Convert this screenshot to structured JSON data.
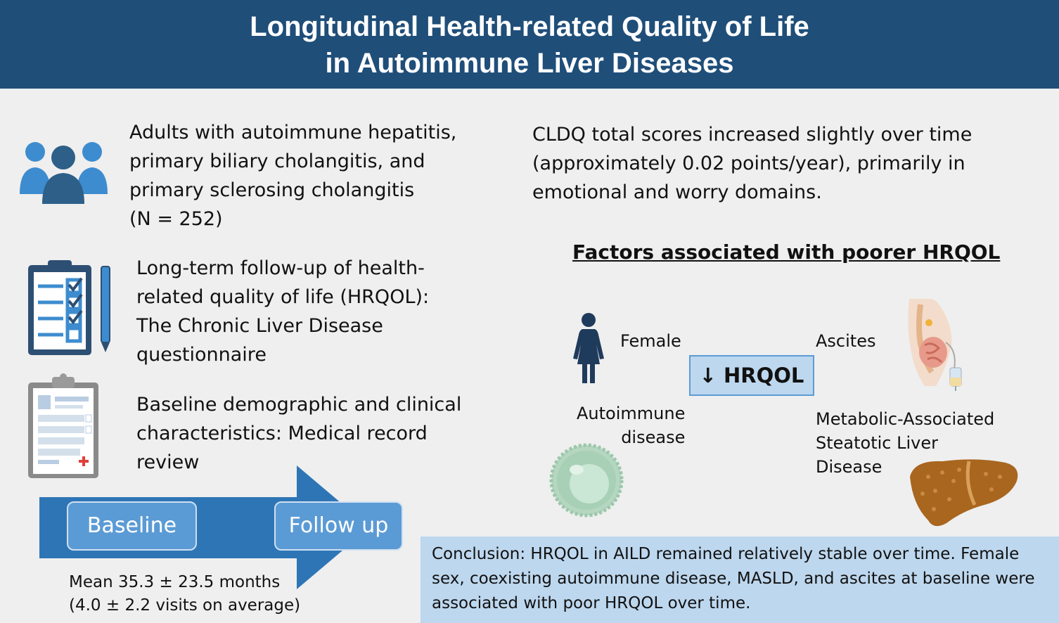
{
  "header": {
    "title_line1": "Longitudinal Health-related Quality of Life",
    "title_line2": "in Autoimmune Liver Diseases"
  },
  "left": {
    "population": [
      "Adults with autoimmune hepatitis,",
      "primary biliary cholangitis, and",
      "primary sclerosing cholangitis",
      "(N = 252)"
    ],
    "followup": [
      "Long-term follow-up of health-",
      "related quality of life (HRQOL):",
      "The Chronic Liver Disease",
      "questionnaire"
    ],
    "baseline_info": [
      "Baseline demographic and clinical",
      "characteristics: Medical record",
      "review"
    ],
    "timeline": {
      "start_label": "Baseline",
      "end_label": "Follow up",
      "mean_line1": "Mean 35.3 ± 23.5 months",
      "mean_line2": "(4.0 ± 2.2 visits on average)"
    }
  },
  "right": {
    "result": [
      "CLDQ total scores increased slightly over time",
      "(approximately 0.02 points/year), primarily in",
      "emotional and worry domains."
    ],
    "factors_title": "Factors associated with poorer HRQOL",
    "center_label": "↓ HRQOL",
    "factor_female": "Female",
    "factor_ascites": "Ascites",
    "factor_autoimmune_line1": "Autoimmune",
    "factor_autoimmune_line2": "disease",
    "factor_masld_line1": "Metabolic-Associated",
    "factor_masld_line2": "Steatotic Liver",
    "factor_masld_line3": "Disease",
    "conclusion_line1": "Conclusion: HRQOL in AILD remained relatively stable over time. Female",
    "conclusion_line2": "sex, coexisting autoimmune disease, MASLD, and ascites at baseline were",
    "conclusion_line3": "associated with poor HRQOL over time."
  },
  "colors": {
    "header_bg": "#1f4e79",
    "accent_blue": "#2e75b6",
    "light_blue": "#bdd7ee"
  }
}
